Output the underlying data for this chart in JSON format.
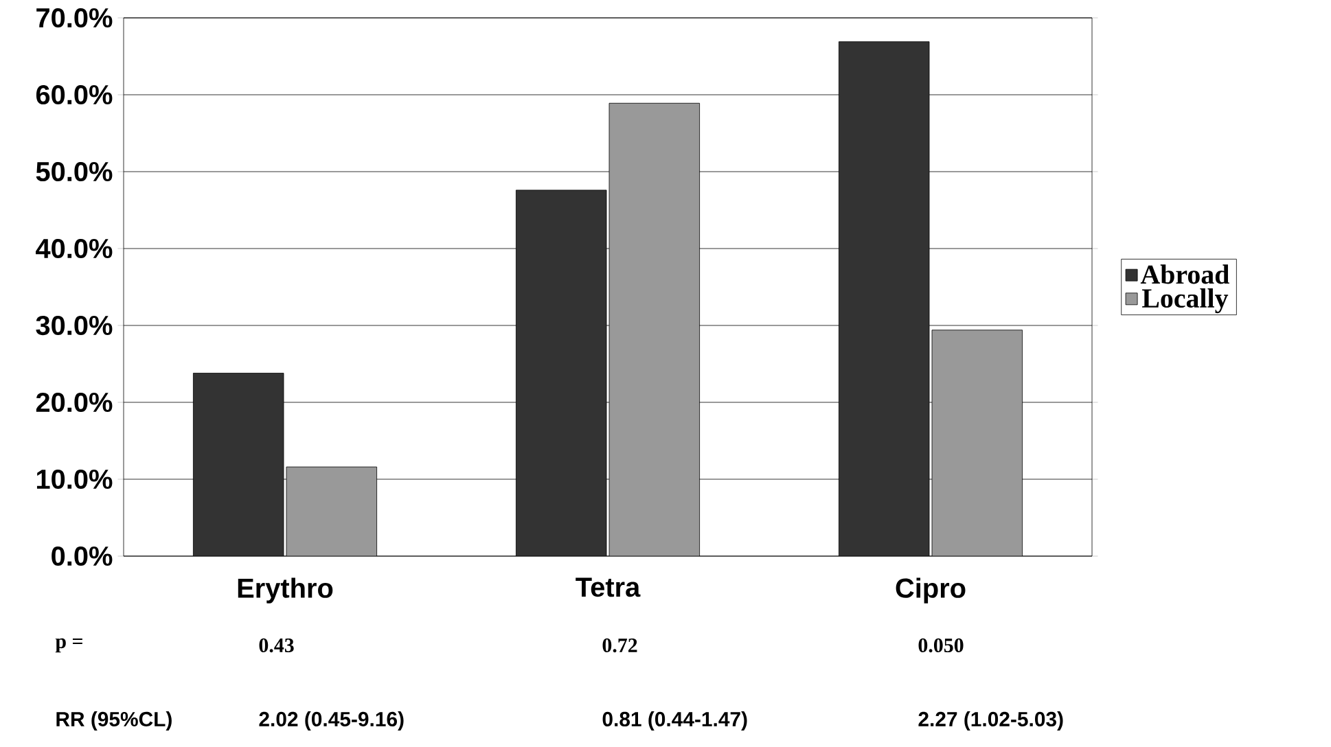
{
  "chart_data": {
    "type": "bar",
    "categories": [
      "Erythro",
      "Tetra",
      "Cipro"
    ],
    "series": [
      {
        "name": "Abroad",
        "color": "#333333",
        "values": [
          23.8,
          47.6,
          66.9
        ]
      },
      {
        "name": "Locally",
        "color": "#999999",
        "values": [
          11.6,
          58.9,
          29.4
        ]
      }
    ],
    "ylim": [
      0,
      70
    ],
    "yticks": [
      {
        "value": 0,
        "label": "0.0%"
      },
      {
        "value": 10,
        "label": "10.0%"
      },
      {
        "value": 20,
        "label": "20.0%"
      },
      {
        "value": 30,
        "label": "30.0%"
      },
      {
        "value": 40,
        "label": "40.0%"
      },
      {
        "value": 50,
        "label": "50.0%"
      },
      {
        "value": 60,
        "label": "60.0%"
      },
      {
        "value": 70,
        "label": "70.0%"
      }
    ],
    "grid": "y",
    "legend": "right",
    "annotations": [
      "p =",
      "0.43",
      "0.72",
      "0.050",
      "RR (95%CL)",
      "2.02 (0.45-9.16)",
      "0.81 (0.44-1.47)",
      "2.27 (1.02-5.03)"
    ]
  }
}
